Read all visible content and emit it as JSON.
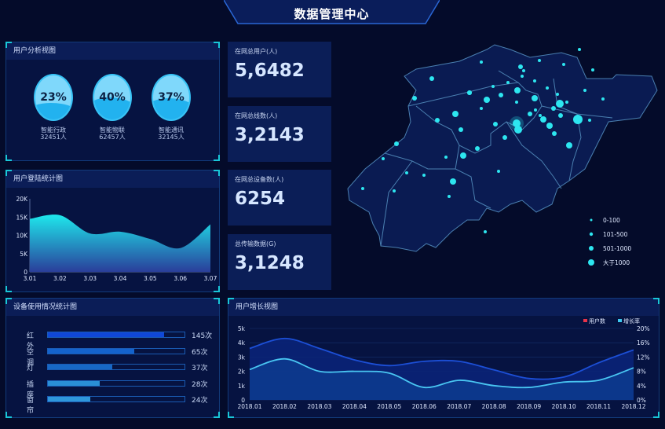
{
  "header": {
    "title": "数据管理中心"
  },
  "user_analysis": {
    "title": "用户分析视图",
    "items": [
      {
        "percent": "23%",
        "fill": 0.23,
        "name": "智能行政",
        "count": "32451人"
      },
      {
        "percent": "40%",
        "fill": 0.4,
        "name": "智能物联",
        "count": "62457人"
      },
      {
        "percent": "37%",
        "fill": 0.37,
        "name": "智能通讯",
        "count": "32145人"
      }
    ]
  },
  "stats": [
    {
      "label": "在网总用户(人)",
      "value": "5,6482"
    },
    {
      "label": "在网总线数(人)",
      "value": "3,2143"
    },
    {
      "label": "在网总设备数(人)",
      "value": "6254"
    },
    {
      "label": "总传输数据(G)",
      "value": "3,1248"
    }
  ],
  "map": {
    "legend": [
      {
        "label": "0-100"
      },
      {
        "label": "101-500"
      },
      {
        "label": "501-1000"
      },
      {
        "label": "大于1000"
      }
    ],
    "dot_color": "#2de6f0"
  },
  "device_usage": {
    "title": "设备使用情况统计图",
    "items": [
      {
        "name": "红外",
        "value": 145,
        "label": "145次",
        "fill": 0.85,
        "color": "#1048d8"
      },
      {
        "name": "空调",
        "value": 65,
        "label": "65次",
        "fill": 0.63,
        "color": "#1463cc"
      },
      {
        "name": "灯",
        "value": 37,
        "label": "37次",
        "fill": 0.47,
        "color": "#1768c6"
      },
      {
        "name": "插座",
        "value": 28,
        "label": "28次",
        "fill": 0.38,
        "color": "#2a8fd6"
      },
      {
        "name": "窗帘",
        "value": 24,
        "label": "24次",
        "fill": 0.31,
        "color": "#2f97db"
      }
    ]
  },
  "chart_data": [
    {
      "type": "area",
      "title": "用户登陆统计图",
      "categories": [
        "3.01",
        "3.02",
        "3.03",
        "3.04",
        "3.05",
        "3.06",
        "3.07"
      ],
      "values": [
        14500,
        15500,
        10500,
        11000,
        9000,
        6500,
        13000
      ],
      "yticks": [
        "0",
        "5K",
        "10K",
        "15K",
        "20K"
      ],
      "ylim": [
        0,
        20000
      ],
      "grid": false
    },
    {
      "type": "area",
      "title": "用户增长视图",
      "categories": [
        "2018.01",
        "2018.02",
        "2018.03",
        "2018.04",
        "2018.05",
        "2018.06",
        "2018.07",
        "2018.08",
        "2018.09",
        "2018.10",
        "2018.11",
        "2018.12"
      ],
      "series": [
        {
          "name": "用户数",
          "axis": "left",
          "values": [
            3600,
            4300,
            3600,
            2800,
            2400,
            2700,
            2700,
            2100,
            1500,
            1600,
            2600,
            3500
          ],
          "legend_color": "#e8334a",
          "line_color": "#1c4fd6"
        },
        {
          "name": "增长率",
          "axis": "right",
          "values": [
            8.5,
            11.5,
            8,
            8,
            7.5,
            3.5,
            5.5,
            4,
            3.5,
            5,
            5.5,
            9
          ],
          "legend_color": "#3cc8f0",
          "line_color": "#49c6f2"
        }
      ],
      "yticks_left": [
        "0",
        "1k",
        "2k",
        "3k",
        "4k",
        "5k"
      ],
      "ylim_left": [
        0,
        5000
      ],
      "yticks_right": [
        "0%",
        "4%",
        "8%",
        "12%",
        "16%",
        "20%"
      ],
      "ylim_right": [
        0,
        20
      ],
      "legend": "top-right",
      "grid": true
    }
  ]
}
